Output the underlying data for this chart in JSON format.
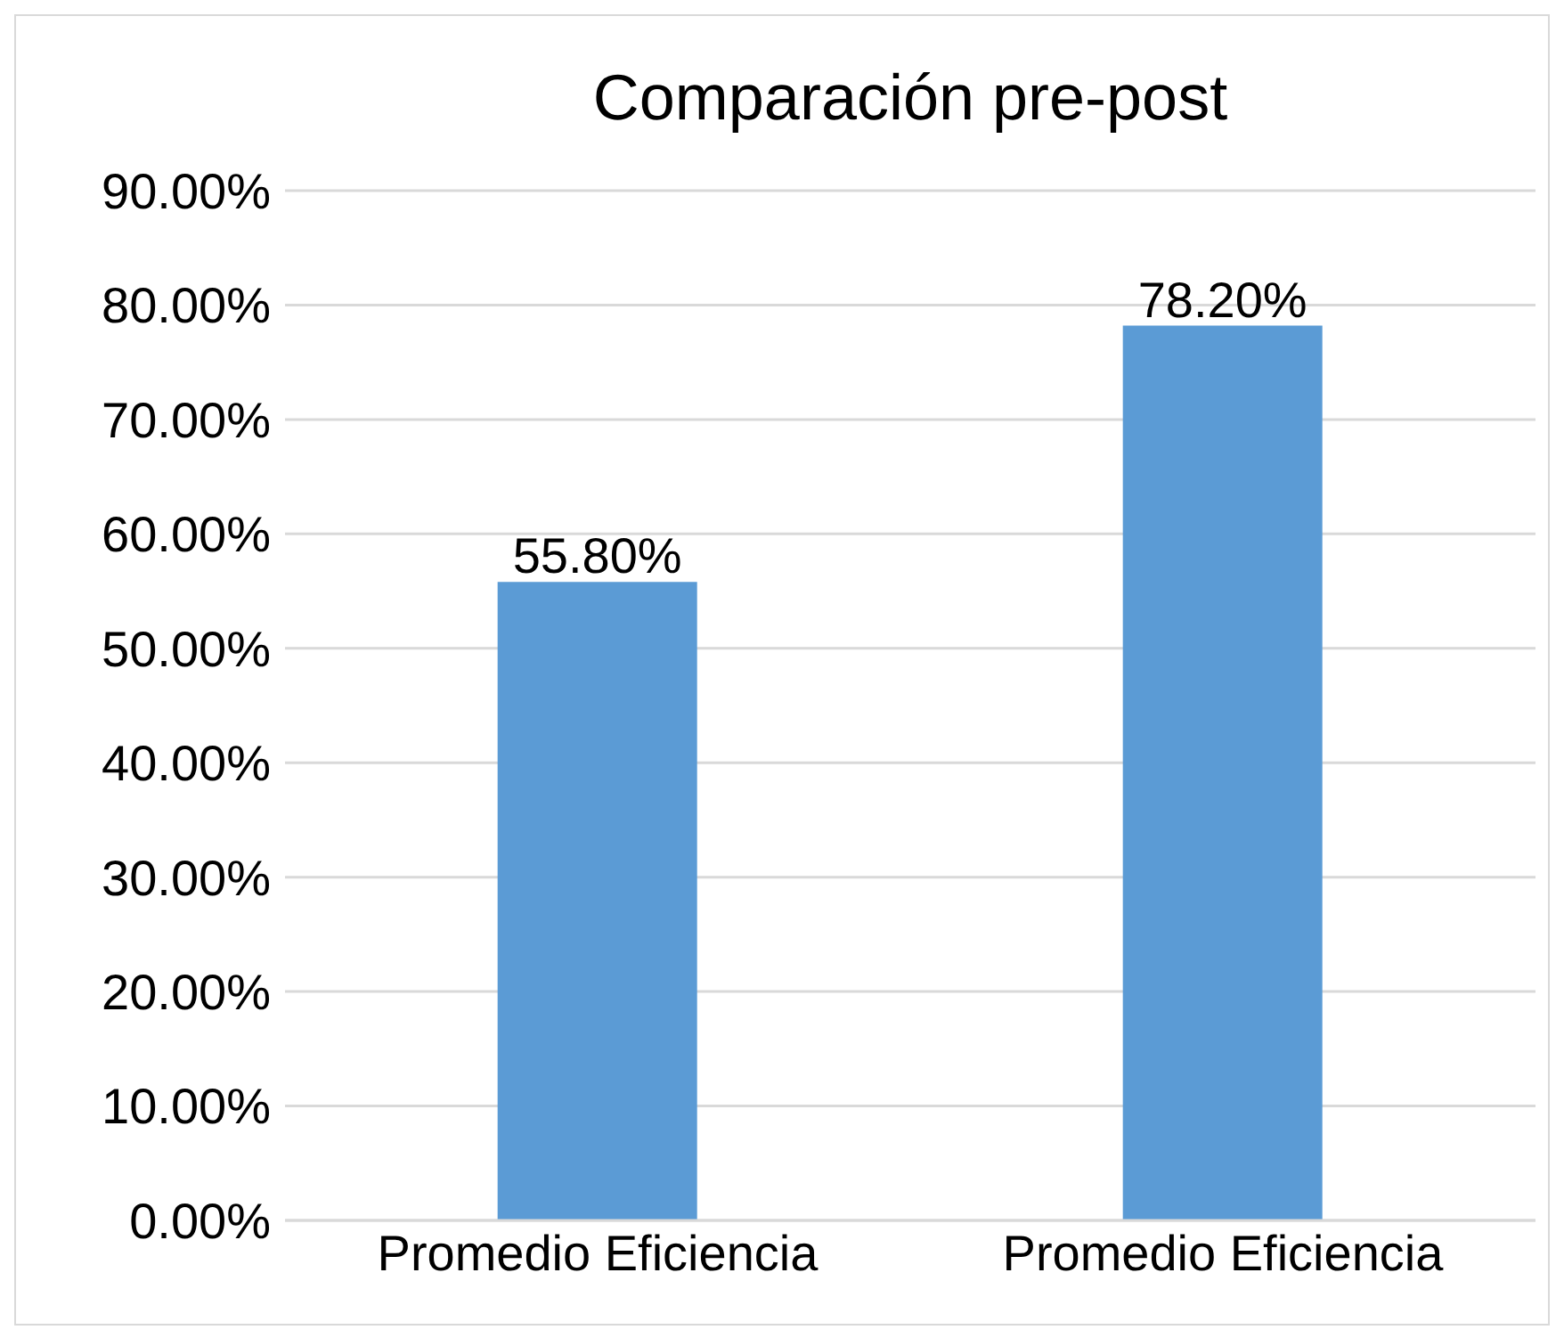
{
  "chart_data": {
    "type": "bar",
    "title": "Comparación pre-post",
    "categories": [
      "Promedio Eficiencia",
      "Promedio Eficiencia"
    ],
    "values": [
      55.8,
      78.2
    ],
    "value_labels": [
      "55.80%",
      "78.20%"
    ],
    "color": "#5b9bd5",
    "ylim": [
      0,
      90
    ],
    "yticks": [
      {
        "value": 0,
        "label": "0.00%"
      },
      {
        "value": 10,
        "label": "10.00%"
      },
      {
        "value": 20,
        "label": "20.00%"
      },
      {
        "value": 30,
        "label": "30.00%"
      },
      {
        "value": 40,
        "label": "40.00%"
      },
      {
        "value": 50,
        "label": "50.00%"
      },
      {
        "value": 60,
        "label": "60.00%"
      },
      {
        "value": 70,
        "label": "70.00%"
      },
      {
        "value": 80,
        "label": "80.00%"
      },
      {
        "value": 90,
        "label": "90.00%"
      }
    ],
    "grid": "y",
    "legend": false
  }
}
